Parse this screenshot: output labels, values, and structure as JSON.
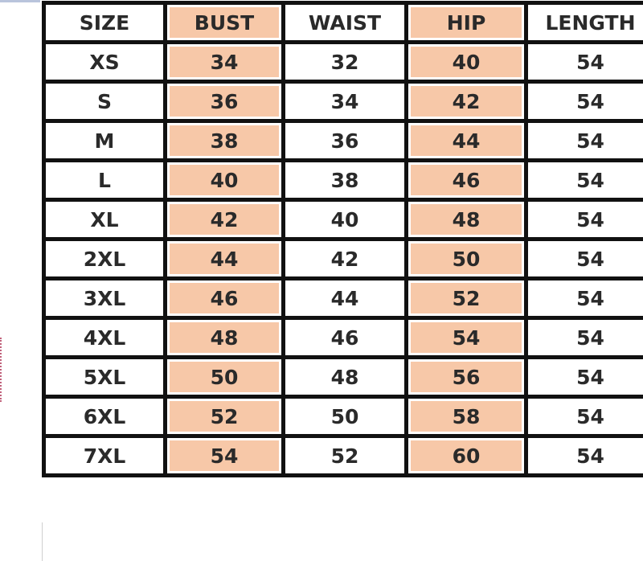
{
  "accent_color": "#f7c8a8",
  "headers": [
    "SIZE",
    "BUST",
    "WAIST",
    "HIP",
    "LENGTH"
  ],
  "rows": [
    [
      "XS",
      "34",
      "32",
      "40",
      "54"
    ],
    [
      "S",
      "36",
      "34",
      "42",
      "54"
    ],
    [
      "M",
      "38",
      "36",
      "44",
      "54"
    ],
    [
      "L",
      "40",
      "38",
      "46",
      "54"
    ],
    [
      "XL",
      "42",
      "40",
      "48",
      "54"
    ],
    [
      "2XL",
      "44",
      "42",
      "50",
      "54"
    ],
    [
      "3XL",
      "46",
      "44",
      "52",
      "54"
    ],
    [
      "4XL",
      "48",
      "46",
      "54",
      "54"
    ],
    [
      "5XL",
      "50",
      "48",
      "56",
      "54"
    ],
    [
      "6XL",
      "52",
      "50",
      "58",
      "54"
    ],
    [
      "7XL",
      "54",
      "52",
      "60",
      "54"
    ]
  ]
}
